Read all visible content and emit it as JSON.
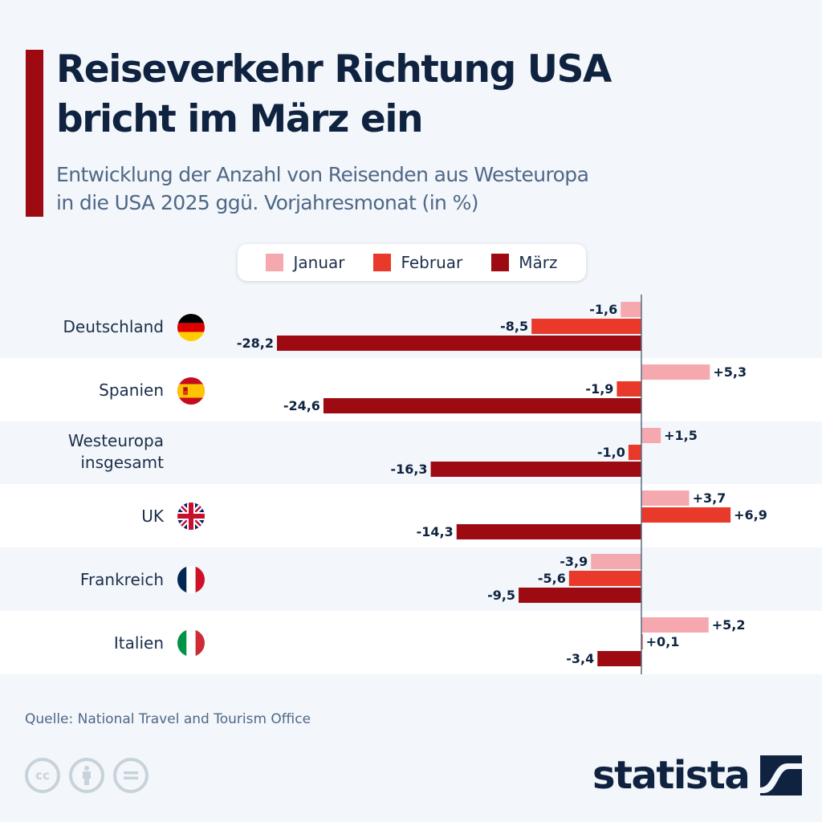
{
  "header": {
    "title_line1": "Reiseverkehr Richtung USA",
    "title_line2": "bricht im März ein",
    "subtitle_line1": "Entwicklung der Anzahl von Reisenden aus Westeuropa",
    "subtitle_line2": "in die USA 2025 ggü. Vorjahresmonat (in %)"
  },
  "colors": {
    "accent": "#9e0a12",
    "januar": "#f5a9ae",
    "februar": "#e8392b",
    "maerz": "#9e0a12",
    "text": "#0f2340",
    "band_alt": "#f3f6fa",
    "band_white": "#ffffff"
  },
  "chart_data": {
    "type": "bar",
    "orientation": "horizontal",
    "title": "Reiseverkehr Richtung USA bricht im März ein",
    "subtitle": "Entwicklung der Anzahl von Reisenden aus Westeuropa in die USA 2025 ggü. Vorjahresmonat (in %)",
    "xlabel": "",
    "ylabel": "",
    "categories": [
      "Deutschland",
      "Spanien",
      "Westeuropa insgesamt",
      "UK",
      "Frankreich",
      "Italien"
    ],
    "category_flags": [
      "flag-germany",
      "flag-spain",
      "",
      "flag-uk",
      "flag-france",
      "flag-italy"
    ],
    "series": [
      {
        "name": "Januar",
        "values": [
          -1.6,
          5.3,
          1.5,
          3.7,
          -3.9,
          5.2
        ],
        "labels": [
          "-1,6",
          "+5,3",
          "+1,5",
          "+3,7",
          "-3,9",
          "+5,2"
        ]
      },
      {
        "name": "Februar",
        "values": [
          -8.5,
          -1.9,
          -1.0,
          6.9,
          -5.6,
          0.1
        ],
        "labels": [
          "-8,5",
          "-1,9",
          "-1,0",
          "+6,9",
          "-5,6",
          "+0,1"
        ]
      },
      {
        "name": "März",
        "values": [
          -28.2,
          -24.6,
          -16.3,
          -14.3,
          -9.5,
          -3.4
        ],
        "labels": [
          "-28,2",
          "-24,6",
          "-16,3",
          "-14,3",
          "-9,5",
          "-3,4"
        ]
      }
    ],
    "xlim": [
      -28.2,
      7
    ],
    "grid": false,
    "legend": "top-center",
    "legend_entries": [
      "Januar",
      "Februar",
      "März"
    ]
  },
  "rows": [
    {
      "label_line1": "Deutschland",
      "label_line2": ""
    },
    {
      "label_line1": "Spanien",
      "label_line2": ""
    },
    {
      "label_line1": "Westeuropa",
      "label_line2": "insgesamt"
    },
    {
      "label_line1": "UK",
      "label_line2": ""
    },
    {
      "label_line1": "Frankreich",
      "label_line2": ""
    },
    {
      "label_line1": "Italien",
      "label_line2": ""
    }
  ],
  "footer": {
    "source": "Quelle: National Travel and Tourism Office",
    "license_icons": [
      "cc-icon",
      "by-icon",
      "nd-icon"
    ],
    "cc_text": "cc",
    "logo_text": "statista"
  }
}
